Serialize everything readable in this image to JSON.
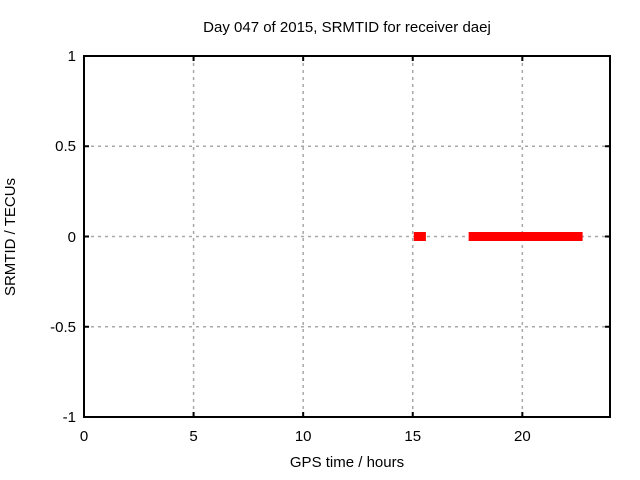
{
  "window": {
    "background": "#ffffff"
  },
  "colors": {
    "data_series": "#ff0000",
    "grid": "#a8a8a8",
    "axis_border": "#000000",
    "text": "#000000",
    "background": "#ffffff"
  },
  "chart_data": {
    "type": "scatter",
    "title": "Day 047 of 2015, SRMTID for receiver daej",
    "xlabel": "GPS time / hours",
    "ylabel": "SRMTID / TECUs",
    "xlim": [
      0,
      24
    ],
    "ylim": [
      -1,
      1
    ],
    "grid": true,
    "grid_style": "dashed",
    "legend": "none",
    "xticks": [
      {
        "value": 0,
        "label": "0"
      },
      {
        "value": 5,
        "label": "5"
      },
      {
        "value": 10,
        "label": "10"
      },
      {
        "value": 15,
        "label": "15"
      },
      {
        "value": 20,
        "label": "20"
      }
    ],
    "yticks": [
      {
        "value": 1,
        "label": "1"
      },
      {
        "value": 0.5,
        "label": "0.5"
      },
      {
        "value": 0,
        "label": "0"
      },
      {
        "value": -0.5,
        "label": "-0.5"
      },
      {
        "value": -1,
        "label": "-1"
      }
    ],
    "series": [
      {
        "name": "SRMTID",
        "color": "#ff0000",
        "marker": "filled-square",
        "marker_size_px": 9,
        "y_value": 0,
        "segments": [
          {
            "x_start": 15.05,
            "x_end": 15.6,
            "y": 0
          },
          {
            "x_start": 17.55,
            "x_end": 22.75,
            "y": 0
          }
        ]
      }
    ]
  }
}
